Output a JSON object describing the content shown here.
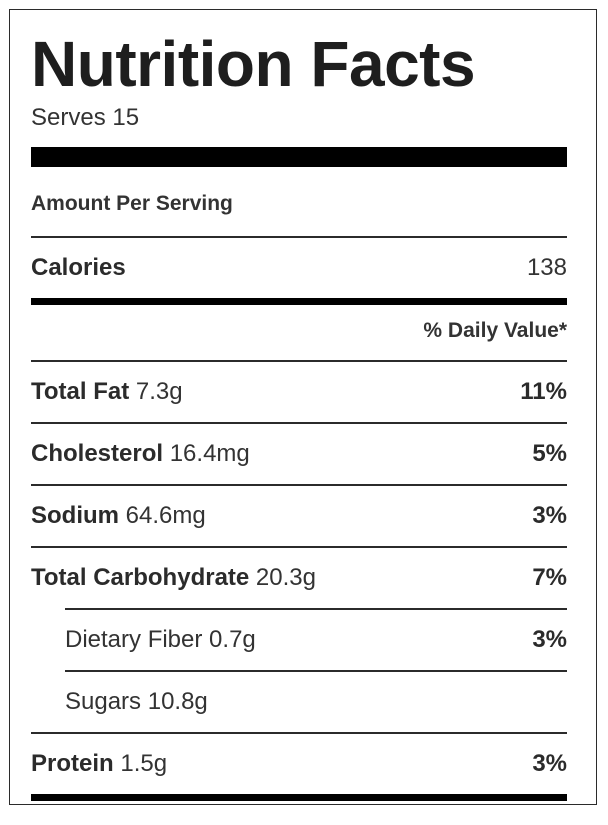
{
  "title": "Nutrition Facts",
  "serves": "Serves 15",
  "amount_per_serving": "Amount Per Serving",
  "calories": {
    "label": "Calories",
    "value": "138"
  },
  "daily_value_header": "% Daily Value*",
  "nutrients": [
    {
      "label": "Total Fat",
      "amount": "7.3g",
      "percent": "11%"
    },
    {
      "label": "Cholesterol",
      "amount": "16.4mg",
      "percent": "5%"
    },
    {
      "label": "Sodium",
      "amount": "64.6mg",
      "percent": "3%"
    },
    {
      "label": "Total Carbohydrate",
      "amount": "20.3g",
      "percent": "7%"
    },
    {
      "label": "Dietary Fiber",
      "amount": "0.7g",
      "percent": "3%"
    },
    {
      "label": "Sugars",
      "amount": "10.8g",
      "percent": ""
    },
    {
      "label": "Protein",
      "amount": "1.5g",
      "percent": "3%"
    }
  ]
}
